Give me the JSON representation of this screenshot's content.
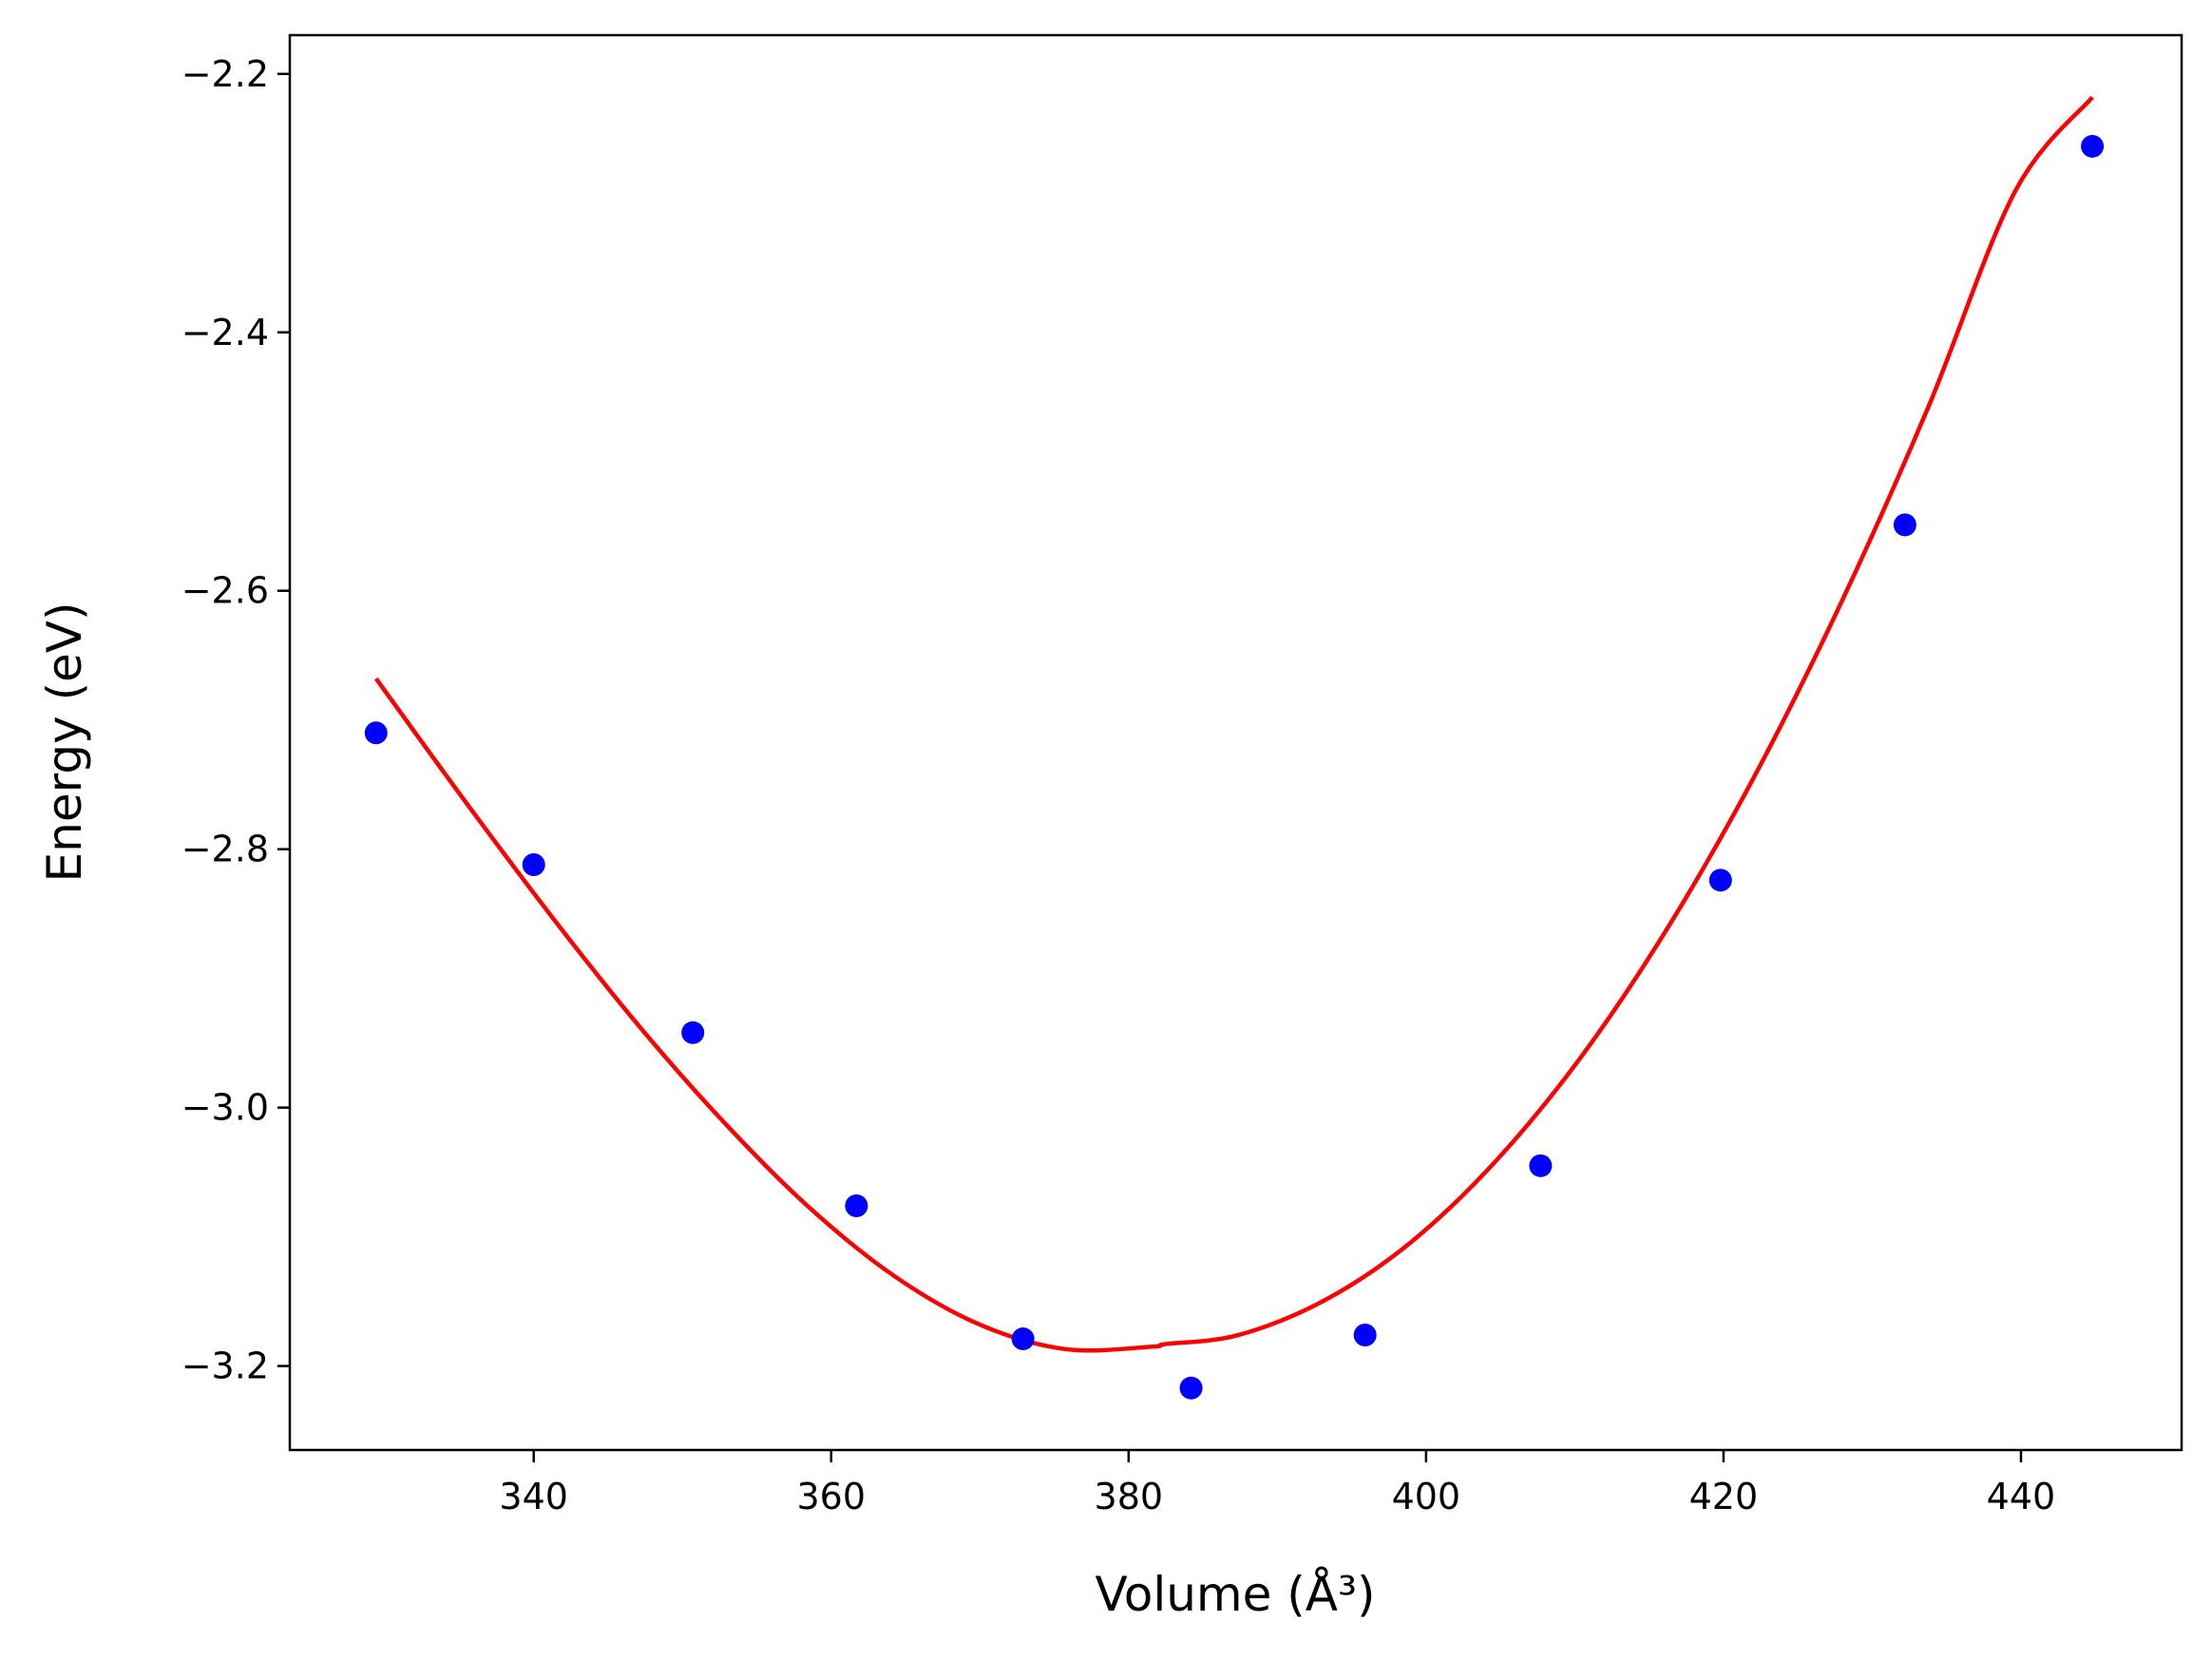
{
  "chart_data": {
    "type": "scatter",
    "xlabel": "Volume (Å³)",
    "ylabel": "Energy (eV)",
    "xlim": [
      323.6,
      450.8
    ],
    "ylim": [
      -3.265,
      -2.17
    ],
    "xticks": [
      340,
      360,
      380,
      400,
      420,
      440
    ],
    "yticks": [
      -3.2,
      -3.0,
      -2.8,
      -2.6,
      -2.4,
      -2.2
    ],
    "xtick_labels": [
      "340",
      "360",
      "380",
      "400",
      "420",
      "440"
    ],
    "ytick_labels": [
      "−3.2",
      "−3.0",
      "−2.8",
      "−2.6",
      "−2.4",
      "−2.2"
    ],
    "grid": false,
    "series": [
      {
        "kind": "points",
        "color": "#0000ff",
        "x": [
          329.4,
          340.0,
          350.7,
          361.7,
          372.9,
          384.2,
          395.9,
          407.7,
          419.8,
          432.2,
          444.8
        ],
        "y": [
          -2.71,
          -2.812,
          -2.942,
          -3.076,
          -3.179,
          -3.217,
          -3.176,
          -3.045,
          -2.824,
          -2.549,
          -2.256
        ]
      },
      {
        "kind": "fit-line",
        "color": "#ff0000",
        "x": [
          329.4,
          335.2,
          341.0,
          346.8,
          352.6,
          358.4,
          364.2,
          370.0,
          375.8,
          381.6,
          382.5,
          387.4,
          393.2,
          399.0,
          404.8,
          410.6,
          416.4,
          422.2,
          428.0,
          433.8,
          439.6,
          444.8
        ],
        "y": [
          -2.668,
          -2.76,
          -2.849,
          -2.933,
          -3.009,
          -3.076,
          -3.13,
          -3.168,
          -3.187,
          -3.185,
          -3.183,
          -3.176,
          -3.149,
          -3.104,
          -3.04,
          -2.958,
          -2.858,
          -2.741,
          -2.607,
          -2.457,
          -2.291,
          -2.218
        ]
      }
    ]
  }
}
